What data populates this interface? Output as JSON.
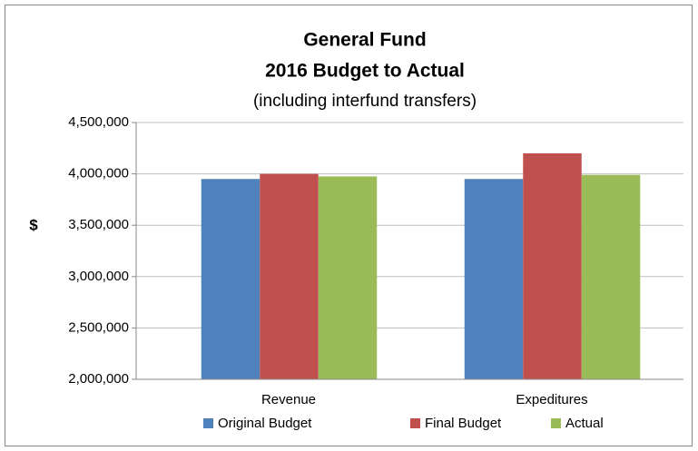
{
  "chart_data": {
    "type": "bar",
    "title": [
      "General Fund",
      "2016 Budget to Actual"
    ],
    "subtitle": "(including interfund transfers)",
    "y_label": "$",
    "categories": [
      "Revenue",
      "Expeditures"
    ],
    "series": [
      {
        "name": "Original Budget",
        "color": "#4f81bd",
        "values": [
          3950000,
          3950000
        ]
      },
      {
        "name": "Final Budget",
        "color": "#c0504d",
        "values": [
          4000000,
          4200000
        ]
      },
      {
        "name": "Actual",
        "color": "#9bbb59",
        "values": [
          3975000,
          3990000
        ]
      }
    ],
    "ylim": [
      2000000,
      4500000
    ],
    "yticks": [
      {
        "value": 2000000,
        "label": "2,000,000"
      },
      {
        "value": 2500000,
        "label": "2,500,000"
      },
      {
        "value": 3000000,
        "label": "3,000,000"
      },
      {
        "value": 3500000,
        "label": "3,500,000"
      },
      {
        "value": 4000000,
        "label": "4,000,000"
      },
      {
        "value": 4500000,
        "label": "4,500,000"
      }
    ],
    "grid": true,
    "legend": "bottom"
  }
}
